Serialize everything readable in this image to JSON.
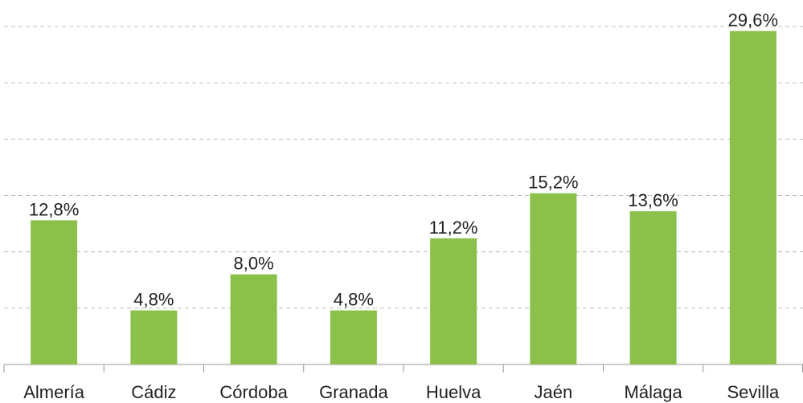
{
  "chart_data": {
    "type": "bar",
    "categories": [
      "Almería",
      "Cádiz",
      "Córdoba",
      "Granada",
      "Huelva",
      "Jaén",
      "Málaga",
      "Sevilla"
    ],
    "values": [
      12.8,
      4.8,
      8.0,
      4.8,
      11.2,
      15.2,
      13.6,
      29.6
    ],
    "value_labels": [
      "12,8%",
      "4,8%",
      "8,0%",
      "4,8%",
      "11,2%",
      "15,2%",
      "13,6%",
      "29,6%"
    ],
    "color": "#8bc04b",
    "ylim": [
      0,
      30
    ],
    "yticks": [
      0,
      5,
      10,
      15,
      20,
      25,
      30
    ],
    "grid": true
  }
}
